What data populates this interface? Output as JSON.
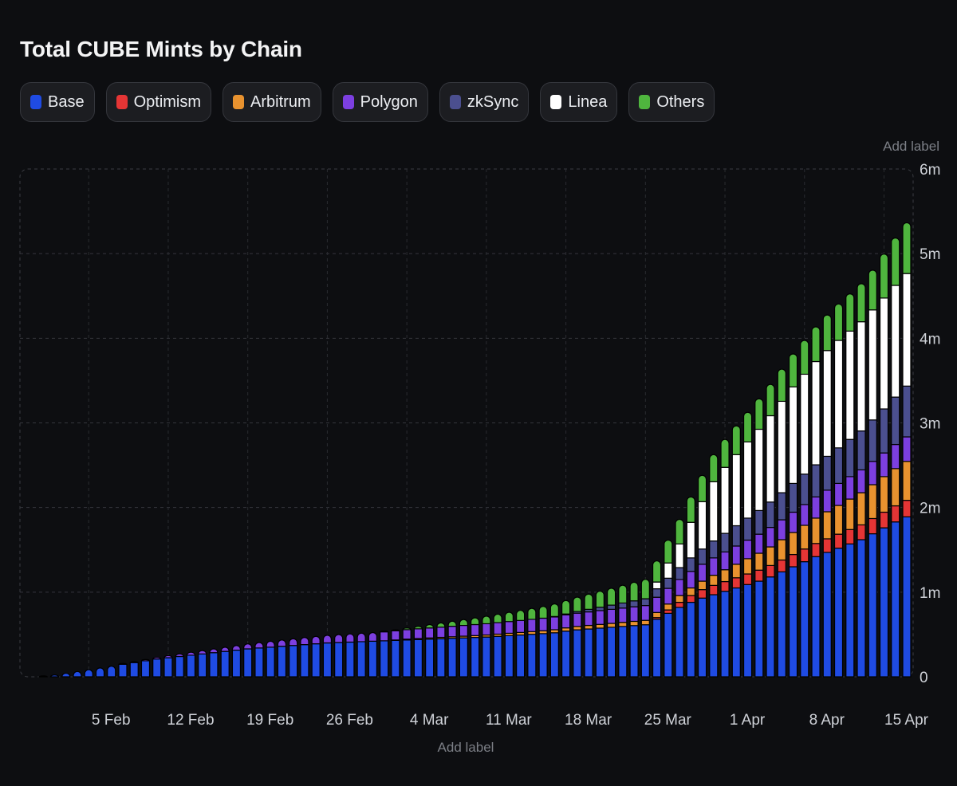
{
  "chart_data": {
    "type": "bar",
    "stacked": true,
    "title": "Total CUBE Mints by Chain",
    "xlabel": "Add label",
    "ylabel": "Add label",
    "ylim": [
      0,
      6000000
    ],
    "y_ticks": [
      {
        "value": 0,
        "label": "0"
      },
      {
        "value": 1000000,
        "label": "1m"
      },
      {
        "value": 2000000,
        "label": "2m"
      },
      {
        "value": 3000000,
        "label": "3m"
      },
      {
        "value": 4000000,
        "label": "4m"
      },
      {
        "value": 5000000,
        "label": "5m"
      },
      {
        "value": 6000000,
        "label": "6m"
      }
    ],
    "x_ticks": [
      {
        "index": 5,
        "label": "5 Feb"
      },
      {
        "index": 12,
        "label": "12 Feb"
      },
      {
        "index": 19,
        "label": "19 Feb"
      },
      {
        "index": 26,
        "label": "26 Feb"
      },
      {
        "index": 33,
        "label": "4 Mar"
      },
      {
        "index": 40,
        "label": "11 Mar"
      },
      {
        "index": 47,
        "label": "18 Mar"
      },
      {
        "index": 54,
        "label": "25 Mar"
      },
      {
        "index": 61,
        "label": "1 Apr"
      },
      {
        "index": 68,
        "label": "8 Apr"
      },
      {
        "index": 75,
        "label": "15 Apr"
      }
    ],
    "grid": true,
    "legend_position": "top-left",
    "series": [
      {
        "name": "Base",
        "color": "#1f4be3",
        "values": [
          0,
          5000,
          21000,
          42000,
          63000,
          84000,
          105000,
          126000,
          147000,
          168000,
          189000,
          210000,
          225000,
          240000,
          255000,
          270000,
          285000,
          300000,
          315000,
          330000,
          340000,
          350000,
          360000,
          370000,
          380000,
          390000,
          400000,
          405000,
          410000,
          415000,
          420000,
          425000,
          430000,
          435000,
          440000,
          445000,
          450000,
          455000,
          460000,
          465000,
          470000,
          478000,
          486000,
          494000,
          502000,
          510000,
          520000,
          540000,
          555000,
          565000,
          575000,
          585000,
          595000,
          605000,
          615000,
          680000,
          750000,
          820000,
          880000,
          930000,
          970000,
          1010000,
          1050000,
          1090000,
          1130000,
          1180000,
          1240000,
          1300000,
          1360000,
          1420000,
          1470000,
          1520000,
          1570000,
          1620000,
          1690000,
          1760000,
          1830000,
          1890000
        ]
      },
      {
        "name": "Optimism",
        "color": "#e53535",
        "values": [
          0,
          0,
          0,
          0,
          0,
          0,
          0,
          0,
          0,
          0,
          0,
          0,
          0,
          0,
          0,
          0,
          0,
          0,
          0,
          0,
          0,
          0,
          0,
          0,
          0,
          0,
          0,
          0,
          0,
          0,
          0,
          0,
          0,
          0,
          0,
          0,
          0,
          0,
          0,
          0,
          0,
          0,
          0,
          0,
          0,
          0,
          0,
          0,
          0,
          0,
          0,
          0,
          0,
          0,
          0,
          20000,
          40000,
          60000,
          80000,
          100000,
          110000,
          115000,
          120000,
          125000,
          130000,
          135000,
          140000,
          145000,
          150000,
          155000,
          160000,
          165000,
          170000,
          175000,
          180000,
          185000,
          190000,
          195000
        ]
      },
      {
        "name": "Arbitrum",
        "color": "#e8922f",
        "values": [
          0,
          0,
          0,
          0,
          0,
          0,
          0,
          0,
          0,
          0,
          0,
          0,
          0,
          0,
          0,
          0,
          0,
          0,
          0,
          0,
          0,
          0,
          0,
          0,
          0,
          0,
          0,
          0,
          0,
          0,
          0,
          0,
          5000,
          10000,
          12000,
          14000,
          16000,
          18000,
          20000,
          22000,
          24000,
          26000,
          28000,
          30000,
          32000,
          34000,
          36000,
          38000,
          40000,
          42000,
          44000,
          46000,
          48000,
          50000,
          52000,
          60000,
          70000,
          80000,
          90000,
          100000,
          120000,
          140000,
          160000,
          180000,
          200000,
          220000,
          240000,
          260000,
          280000,
          300000,
          320000,
          340000,
          360000,
          380000,
          400000,
          420000,
          440000,
          460000
        ]
      },
      {
        "name": "Polygon",
        "color": "#7c3fe0",
        "values": [
          0,
          0,
          0,
          0,
          0,
          0,
          0,
          0,
          5000,
          10000,
          15000,
          20000,
          25000,
          30000,
          35000,
          40000,
          45000,
          50000,
          55000,
          60000,
          65000,
          70000,
          75000,
          80000,
          85000,
          88000,
          91000,
          94000,
          97000,
          100000,
          103000,
          106000,
          109000,
          112000,
          115000,
          118000,
          121000,
          124000,
          127000,
          130000,
          133000,
          136000,
          139000,
          142000,
          145000,
          148000,
          151000,
          154000,
          157000,
          160000,
          163000,
          166000,
          169000,
          172000,
          175000,
          180000,
          185000,
          190000,
          195000,
          200000,
          205000,
          210000,
          215000,
          220000,
          225000,
          230000,
          235000,
          240000,
          245000,
          250000,
          255000,
          260000,
          265000,
          270000,
          275000,
          280000,
          285000,
          290000
        ]
      },
      {
        "name": "zkSync",
        "color": "#4b4f8f",
        "values": [
          0,
          0,
          0,
          0,
          0,
          0,
          0,
          0,
          0,
          0,
          0,
          0,
          0,
          0,
          0,
          0,
          0,
          0,
          0,
          0,
          0,
          0,
          0,
          0,
          0,
          0,
          0,
          0,
          0,
          0,
          0,
          0,
          0,
          0,
          0,
          0,
          0,
          0,
          0,
          0,
          0,
          0,
          0,
          0,
          0,
          0,
          5000,
          10000,
          20000,
          30000,
          40000,
          50000,
          60000,
          70000,
          80000,
          100000,
          120000,
          140000,
          160000,
          180000,
          200000,
          220000,
          240000,
          260000,
          280000,
          300000,
          320000,
          340000,
          360000,
          380000,
          400000,
          420000,
          440000,
          460000,
          490000,
          520000,
          560000,
          600000
        ]
      },
      {
        "name": "Linea",
        "color": "#ffffff",
        "values": [
          0,
          0,
          0,
          0,
          0,
          0,
          0,
          0,
          0,
          0,
          0,
          0,
          0,
          0,
          0,
          0,
          0,
          0,
          0,
          0,
          0,
          0,
          0,
          0,
          0,
          0,
          0,
          0,
          0,
          0,
          0,
          0,
          0,
          0,
          0,
          0,
          0,
          0,
          0,
          0,
          0,
          0,
          0,
          0,
          0,
          0,
          0,
          0,
          0,
          0,
          0,
          0,
          0,
          0,
          0,
          80000,
          180000,
          280000,
          420000,
          560000,
          700000,
          780000,
          840000,
          900000,
          960000,
          1020000,
          1080000,
          1140000,
          1180000,
          1220000,
          1250000,
          1270000,
          1280000,
          1290000,
          1300000,
          1310000,
          1320000,
          1330000
        ]
      },
      {
        "name": "Others",
        "color": "#4fb53e",
        "values": [
          0,
          0,
          0,
          0,
          0,
          0,
          0,
          0,
          0,
          0,
          0,
          0,
          0,
          0,
          0,
          0,
          0,
          0,
          0,
          0,
          0,
          0,
          0,
          0,
          0,
          0,
          0,
          0,
          0,
          0,
          0,
          5000,
          10000,
          20000,
          30000,
          40000,
          50000,
          60000,
          70000,
          80000,
          90000,
          100000,
          110000,
          120000,
          130000,
          140000,
          150000,
          160000,
          170000,
          180000,
          190000,
          200000,
          210000,
          220000,
          230000,
          250000,
          270000,
          290000,
          300000,
          310000,
          320000,
          330000,
          340000,
          350000,
          360000,
          370000,
          380000,
          390000,
          400000,
          410000,
          420000,
          430000,
          440000,
          450000,
          470000,
          520000,
          560000,
          600000
        ]
      }
    ]
  }
}
